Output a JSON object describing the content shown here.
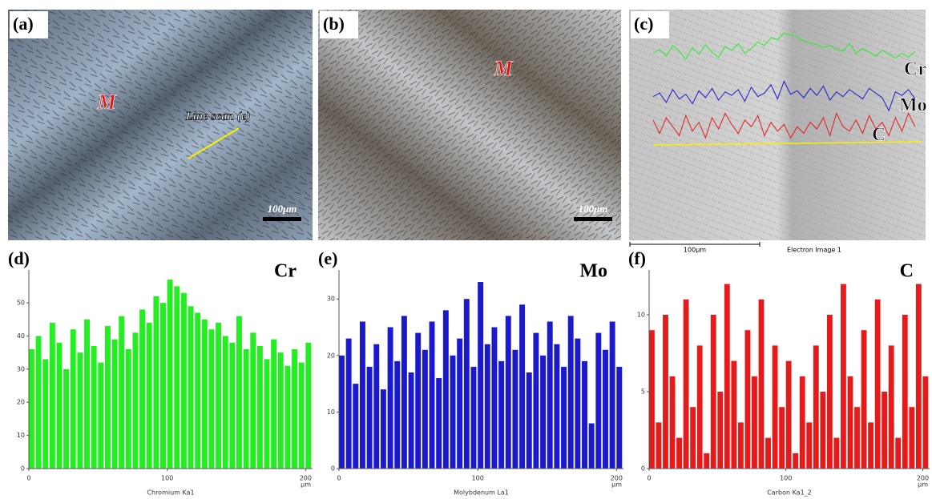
{
  "panels": [
    {
      "label": "(a)",
      "annotations": [
        "M",
        "Line scan (e)"
      ],
      "scale_bar": "100μm"
    },
    {
      "label": "(b)",
      "annotations": [
        "M"
      ],
      "scale_bar": "100μm"
    },
    {
      "label": "(c)",
      "annotations": [
        "Cr",
        "Mo",
        "C"
      ],
      "scale_bar": "100μm",
      "caption": "Electron Image 1"
    }
  ],
  "chart_data": [
    {
      "type": "bar",
      "panel": "(d)",
      "title": "Cr",
      "x_label": "Chromium Ka1",
      "x_unit": "μm",
      "color": "#22ee22",
      "x": [
        0,
        5,
        10,
        15,
        20,
        25,
        30,
        35,
        40,
        45,
        50,
        55,
        60,
        65,
        70,
        75,
        80,
        85,
        90,
        95,
        100,
        105,
        110,
        115,
        120,
        125,
        130,
        135,
        140,
        145,
        150,
        155,
        160,
        165,
        170,
        175,
        180,
        185,
        190,
        195,
        200
      ],
      "values": [
        36,
        40,
        33,
        44,
        38,
        30,
        42,
        35,
        45,
        37,
        32,
        43,
        39,
        46,
        36,
        41,
        48,
        44,
        52,
        50,
        57,
        55,
        53,
        49,
        47,
        45,
        42,
        44,
        40,
        38,
        46,
        36,
        41,
        37,
        33,
        39,
        35,
        31,
        36,
        32,
        38
      ],
      "xlim": [
        0,
        205
      ],
      "xticks": [
        0,
        100,
        200
      ],
      "ylim": [
        0,
        58
      ],
      "yticks": [
        0,
        10,
        20,
        30,
        40,
        50
      ]
    },
    {
      "type": "bar",
      "panel": "(e)",
      "title": "Mo",
      "x_label": "Molybdenum La1",
      "x_unit": "μm",
      "color": "#1a1acc",
      "x": [
        0,
        5,
        10,
        15,
        20,
        25,
        30,
        35,
        40,
        45,
        50,
        55,
        60,
        65,
        70,
        75,
        80,
        85,
        90,
        95,
        100,
        105,
        110,
        115,
        120,
        125,
        130,
        135,
        140,
        145,
        150,
        155,
        160,
        165,
        170,
        175,
        180,
        185,
        190,
        195,
        200
      ],
      "values": [
        20,
        23,
        15,
        26,
        18,
        22,
        14,
        25,
        19,
        27,
        17,
        24,
        21,
        26,
        16,
        28,
        20,
        23,
        30,
        18,
        33,
        22,
        25,
        19,
        27,
        21,
        29,
        17,
        24,
        20,
        26,
        22,
        18,
        27,
        23,
        19,
        8,
        24,
        21,
        26,
        18
      ],
      "xlim": [
        0,
        205
      ],
      "xticks": [
        0,
        100,
        200
      ],
      "ylim": [
        0,
        34
      ],
      "yticks": [
        0,
        10,
        20,
        30
      ]
    },
    {
      "type": "bar",
      "panel": "(f)",
      "title": "C",
      "x_label": "Carbon Ka1_2",
      "x_unit": "μm",
      "color": "#e51a1a",
      "x": [
        0,
        5,
        10,
        15,
        20,
        25,
        30,
        35,
        40,
        45,
        50,
        55,
        60,
        65,
        70,
        75,
        80,
        85,
        90,
        95,
        100,
        105,
        110,
        115,
        120,
        125,
        130,
        135,
        140,
        145,
        150,
        155,
        160,
        165,
        170,
        175,
        180,
        185,
        190,
        195,
        200
      ],
      "values": [
        9,
        3,
        10,
        6,
        2,
        11,
        4,
        8,
        1,
        10,
        5,
        12,
        7,
        3,
        9,
        6,
        11,
        2,
        8,
        4,
        7,
        1,
        6,
        3,
        8,
        5,
        10,
        2,
        12,
        6,
        4,
        9,
        3,
        11,
        5,
        8,
        2,
        10,
        4,
        12,
        6
      ],
      "xlim": [
        0,
        205
      ],
      "xticks": [
        0,
        100,
        200
      ],
      "ylim": [
        0,
        12.5
      ],
      "yticks": [
        0,
        5,
        10
      ]
    }
  ]
}
